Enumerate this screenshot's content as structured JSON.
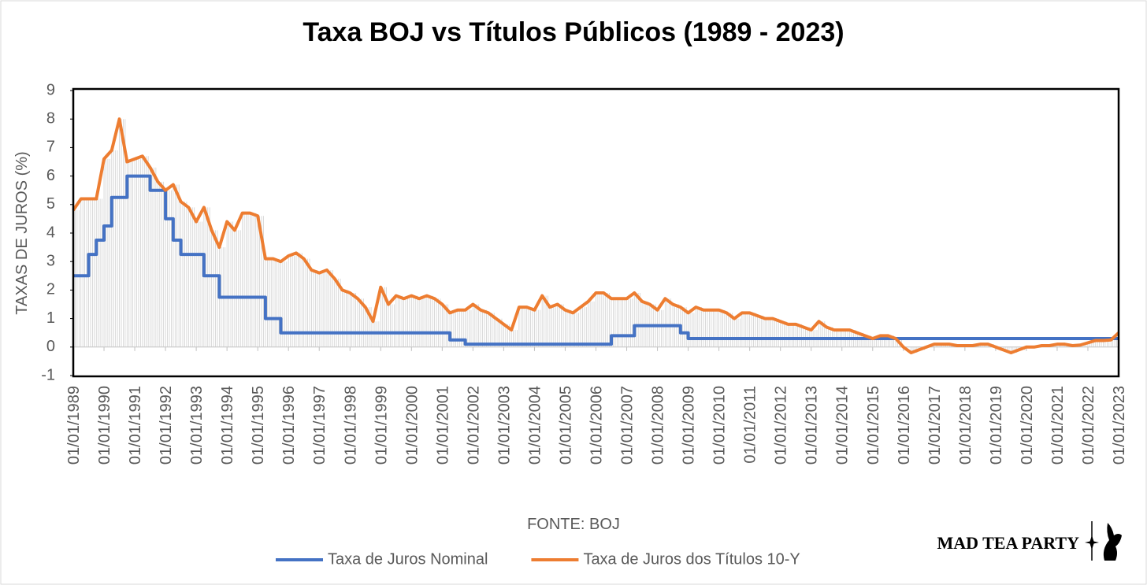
{
  "chart_data": {
    "type": "line",
    "title": "Taxa BOJ vs Títulos Públicos (1989 - 2023)",
    "y_label": "TAXAS DE JUROS (%)",
    "x_label": "FONTE: BOJ",
    "watermark": "MAD TEA PARTY",
    "legend": "bottom",
    "grid": false,
    "drop_lines": true,
    "ylim": [
      -1,
      9
    ],
    "yticks": [
      -1,
      0,
      1,
      2,
      3,
      4,
      5,
      6,
      7,
      8,
      9
    ],
    "xlim": [
      "01/01/1989",
      "01/01/2023"
    ],
    "xticks": [
      "01/01/1989",
      "01/01/1990",
      "01/01/1991",
      "01/01/1992",
      "01/01/1993",
      "01/01/1994",
      "01/01/1995",
      "01/01/1996",
      "01/01/1997",
      "01/01/1998",
      "01/01/1999",
      "01/01/2000",
      "01/01/2001",
      "01/01/2002",
      "01/01/2003",
      "01/01/2004",
      "01/01/2005",
      "01/01/2006",
      "01/01/2007",
      "01/01/2008",
      "01/01/2009",
      "01/01/2010",
      "01/01/2011",
      "01/01/2012",
      "01/01/2013",
      "01/01/2014",
      "01/01/2015",
      "01/01/2016",
      "01/01/2017",
      "01/01/2018",
      "01/01/2019",
      "01/01/2020",
      "01/01/2021",
      "01/01/2022",
      "01/01/2023"
    ],
    "x": [
      "01/01/1989",
      "01/04/1989",
      "01/07/1989",
      "01/10/1989",
      "01/01/1990",
      "01/04/1990",
      "01/07/1990",
      "01/10/1990",
      "01/01/1991",
      "01/04/1991",
      "01/07/1991",
      "01/10/1991",
      "01/01/1992",
      "01/04/1992",
      "01/07/1992",
      "01/10/1992",
      "01/01/1993",
      "01/04/1993",
      "01/07/1993",
      "01/10/1993",
      "01/01/1994",
      "01/04/1994",
      "01/07/1994",
      "01/10/1994",
      "01/01/1995",
      "01/04/1995",
      "01/07/1995",
      "01/10/1995",
      "01/01/1996",
      "01/04/1996",
      "01/07/1996",
      "01/10/1996",
      "01/01/1997",
      "01/04/1997",
      "01/07/1997",
      "01/10/1997",
      "01/01/1998",
      "01/04/1998",
      "01/07/1998",
      "01/10/1998",
      "01/01/1999",
      "01/04/1999",
      "01/07/1999",
      "01/10/1999",
      "01/01/2000",
      "01/04/2000",
      "01/07/2000",
      "01/10/2000",
      "01/01/2001",
      "01/04/2001",
      "01/07/2001",
      "01/10/2001",
      "01/01/2002",
      "01/04/2002",
      "01/07/2002",
      "01/10/2002",
      "01/01/2003",
      "01/04/2003",
      "01/07/2003",
      "01/10/2003",
      "01/01/2004",
      "01/04/2004",
      "01/07/2004",
      "01/10/2004",
      "01/01/2005",
      "01/04/2005",
      "01/07/2005",
      "01/10/2005",
      "01/01/2006",
      "01/04/2006",
      "01/07/2006",
      "01/10/2006",
      "01/01/2007",
      "01/04/2007",
      "01/07/2007",
      "01/10/2007",
      "01/01/2008",
      "01/04/2008",
      "01/07/2008",
      "01/10/2008",
      "01/01/2009",
      "01/04/2009",
      "01/07/2009",
      "01/10/2009",
      "01/01/2010",
      "01/04/2010",
      "01/07/2010",
      "01/10/2010",
      "01/01/2011",
      "01/04/2011",
      "01/07/2011",
      "01/10/2011",
      "01/01/2012",
      "01/04/2012",
      "01/07/2012",
      "01/10/2012",
      "01/01/2013",
      "01/04/2013",
      "01/07/2013",
      "01/10/2013",
      "01/01/2014",
      "01/04/2014",
      "01/07/2014",
      "01/10/2014",
      "01/01/2015",
      "01/04/2015",
      "01/07/2015",
      "01/10/2015",
      "01/01/2016",
      "01/04/2016",
      "01/07/2016",
      "01/10/2016",
      "01/01/2017",
      "01/04/2017",
      "01/07/2017",
      "01/10/2017",
      "01/01/2018",
      "01/04/2018",
      "01/07/2018",
      "01/10/2018",
      "01/01/2019",
      "01/04/2019",
      "01/07/2019",
      "01/10/2019",
      "01/01/2020",
      "01/04/2020",
      "01/07/2020",
      "01/10/2020",
      "01/01/2021",
      "01/04/2021",
      "01/07/2021",
      "01/10/2021",
      "01/01/2022",
      "01/04/2022",
      "01/07/2022",
      "01/10/2022",
      "01/01/2023"
    ],
    "series": [
      {
        "name": "Taxa de Juros Nominal",
        "color": "#4472c4",
        "step": "after",
        "values": [
          2.5,
          2.5,
          3.25,
          3.75,
          4.25,
          5.25,
          5.25,
          6,
          6,
          6,
          5.5,
          5.5,
          4.5,
          3.75,
          3.25,
          3.25,
          3.25,
          2.5,
          2.5,
          1.75,
          1.75,
          1.75,
          1.75,
          1.75,
          1.75,
          1,
          1,
          0.5,
          0.5,
          0.5,
          0.5,
          0.5,
          0.5,
          0.5,
          0.5,
          0.5,
          0.5,
          0.5,
          0.5,
          0.5,
          0.5,
          0.5,
          0.5,
          0.5,
          0.5,
          0.5,
          0.5,
          0.5,
          0.5,
          0.25,
          0.25,
          0.1,
          0.1,
          0.1,
          0.1,
          0.1,
          0.1,
          0.1,
          0.1,
          0.1,
          0.1,
          0.1,
          0.1,
          0.1,
          0.1,
          0.1,
          0.1,
          0.1,
          0.1,
          0.1,
          0.4,
          0.4,
          0.4,
          0.75,
          0.75,
          0.75,
          0.75,
          0.75,
          0.75,
          0.5,
          0.3,
          0.3,
          0.3,
          0.3,
          0.3,
          0.3,
          0.3,
          0.3,
          0.3,
          0.3,
          0.3,
          0.3,
          0.3,
          0.3,
          0.3,
          0.3,
          0.3,
          0.3,
          0.3,
          0.3,
          0.3,
          0.3,
          0.3,
          0.3,
          0.3,
          0.3,
          0.3,
          0.3,
          0.3,
          0.3,
          0.3,
          0.3,
          0.3,
          0.3,
          0.3,
          0.3,
          0.3,
          0.3,
          0.3,
          0.3,
          0.3,
          0.3,
          0.3,
          0.3,
          0.3,
          0.3,
          0.3,
          0.3,
          0.3,
          0.3,
          0.3,
          0.3,
          0.3,
          0.3,
          0.3,
          0.3,
          0.3
        ]
      },
      {
        "name": "Taxa de Juros dos Títulos 10-Y",
        "color": "#ed7d31",
        "values": [
          4.8,
          5.2,
          5.2,
          5.2,
          6.6,
          6.9,
          8.0,
          6.5,
          6.6,
          6.7,
          6.3,
          5.8,
          5.5,
          5.7,
          5.1,
          4.9,
          4.4,
          4.9,
          4.1,
          3.5,
          4.4,
          4.1,
          4.7,
          4.7,
          4.6,
          3.1,
          3.1,
          3.0,
          3.2,
          3.3,
          3.1,
          2.7,
          2.6,
          2.7,
          2.4,
          2.0,
          1.9,
          1.7,
          1.4,
          0.9,
          2.1,
          1.5,
          1.8,
          1.7,
          1.8,
          1.7,
          1.8,
          1.7,
          1.5,
          1.2,
          1.3,
          1.3,
          1.5,
          1.3,
          1.2,
          1.0,
          0.8,
          0.6,
          1.4,
          1.4,
          1.3,
          1.8,
          1.4,
          1.5,
          1.3,
          1.2,
          1.4,
          1.6,
          1.9,
          1.9,
          1.7,
          1.7,
          1.7,
          1.9,
          1.6,
          1.5,
          1.3,
          1.7,
          1.5,
          1.4,
          1.2,
          1.4,
          1.3,
          1.3,
          1.3,
          1.2,
          1.0,
          1.2,
          1.2,
          1.1,
          1.0,
          1.0,
          0.9,
          0.8,
          0.8,
          0.7,
          0.6,
          0.9,
          0.7,
          0.6,
          0.6,
          0.6,
          0.5,
          0.4,
          0.3,
          0.4,
          0.4,
          0.3,
          0.0,
          -0.2,
          -0.1,
          0.0,
          0.1,
          0.1,
          0.1,
          0.05,
          0.05,
          0.05,
          0.1,
          0.1,
          0.0,
          -0.1,
          -0.2,
          -0.1,
          0.0,
          0.0,
          0.05,
          0.05,
          0.1,
          0.1,
          0.05,
          0.07,
          0.15,
          0.23,
          0.23,
          0.25,
          0.5
        ]
      }
    ]
  }
}
